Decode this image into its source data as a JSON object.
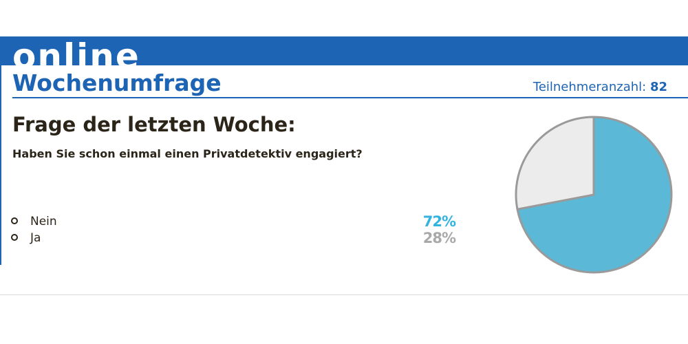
{
  "header": {
    "banner": "online",
    "title": "Wochenumfrage",
    "participants_label": "Teilnehmeranzahl:",
    "participants_count": "82"
  },
  "question": {
    "heading": "Frage der letzten Woche:",
    "text": "Haben Sie schon einmal einen Privatdetektiv engagiert?"
  },
  "options": [
    {
      "label": "Nein",
      "percent_text": "72%",
      "color": "#33b3df"
    },
    {
      "label": "Ja",
      "percent_text": "28%",
      "color": "#a9a9a9"
    }
  ],
  "colors": {
    "brand_blue": "#1e64b4",
    "slice_nein": "#5bb8d6",
    "slice_ja": "#ececec",
    "pie_outline": "#9a9a9a"
  },
  "chart_data": {
    "type": "pie",
    "categories": [
      "Nein",
      "Ja"
    ],
    "values": [
      72,
      28
    ],
    "unit": "%",
    "title": "",
    "legend": "left"
  }
}
